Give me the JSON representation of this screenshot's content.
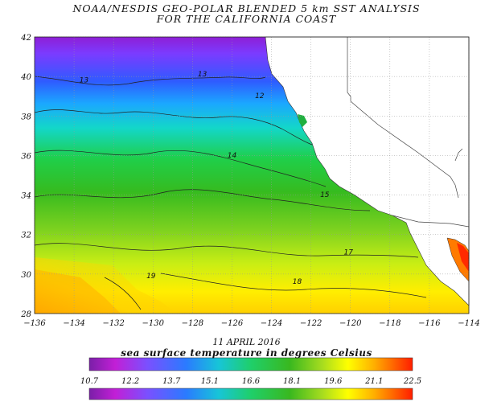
{
  "title_line1": "NOAA/NESDIS GEO-POLAR BLENDED 5 km SST ANALYSIS",
  "title_line2": "FOR THE CALIFORNIA COAST",
  "date": "11 APRIL 2016",
  "colorbar": {
    "title": "sea surface temperature in degrees Celsius",
    "ticks": [
      "10.7",
      "12.2",
      "13.7",
      "15.1",
      "16.6",
      "18.1",
      "19.6",
      "21.1",
      "22.5"
    ],
    "min": 10.7,
    "max": 22.5,
    "stops": [
      "#7a1fa8",
      "#c21fd6",
      "#7a50ff",
      "#2a7bff",
      "#17c5d8",
      "#1fcf6a",
      "#39b81f",
      "#a6dc1f",
      "#ffff00",
      "#ffb000",
      "#ff5a00",
      "#ff1e00"
    ]
  },
  "axes": {
    "lon_ticks": [
      "-136",
      "-134",
      "-132",
      "-130",
      "-128",
      "-126",
      "-124",
      "-122",
      "-120",
      "-118",
      "-116",
      "-114"
    ],
    "lat_ticks": [
      "28",
      "30",
      "32",
      "34",
      "36",
      "38",
      "40",
      "42"
    ],
    "lon_range": [
      -136,
      -114
    ],
    "lat_range": [
      28,
      42
    ]
  },
  "contours": [
    {
      "label": "13",
      "lon": -133.5,
      "lat": 39.7
    },
    {
      "label": "13",
      "lon": -127.5,
      "lat": 40.0
    },
    {
      "label": "12",
      "lon": -124.6,
      "lat": 38.9
    },
    {
      "label": "14",
      "lon": -126.0,
      "lat": 35.9
    },
    {
      "label": "15",
      "lon": -121.3,
      "lat": 33.9
    },
    {
      "label": "17",
      "lon": -120.1,
      "lat": 31.0
    },
    {
      "label": "18",
      "lon": -122.7,
      "lat": 29.5
    },
    {
      "label": "19",
      "lon": -130.1,
      "lat": 29.8
    }
  ]
}
